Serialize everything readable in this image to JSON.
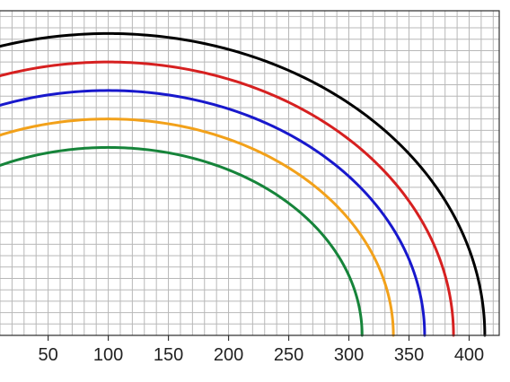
{
  "chart_data": {
    "type": "line",
    "title": "",
    "xlabel": "",
    "ylabel": "",
    "xlim": [
      10,
      425
    ],
    "ylim": [
      0,
      285
    ],
    "x_ticks": [
      50,
      100,
      150,
      200,
      250,
      300,
      350,
      400
    ],
    "x_tick_labels": [
      "50",
      "100",
      "150",
      "200",
      "250",
      "300",
      "350",
      "400"
    ],
    "y_axis_labels_visible": false,
    "grid": true,
    "grid_step": 10,
    "legend": "none",
    "series": [
      {
        "color": "#000000",
        "center_x": 100,
        "radius": 313,
        "peak_y": 265
      },
      {
        "color": "#d62020",
        "center_x": 100,
        "radius": 287,
        "peak_y": 240
      },
      {
        "color": "#1818cc",
        "center_x": 100,
        "radius": 263,
        "peak_y": 215
      },
      {
        "color": "#f2a11a",
        "center_x": 100,
        "radius": 237,
        "peak_y": 190
      },
      {
        "color": "#16843a",
        "center_x": 100,
        "radius": 211,
        "peak_y": 165
      }
    ]
  }
}
